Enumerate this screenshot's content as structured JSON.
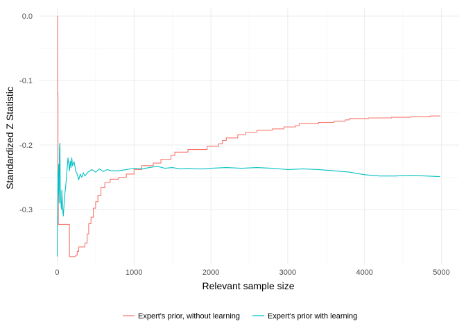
{
  "chart_data": {
    "type": "line",
    "title": "",
    "xlabel": "Relevant sample size",
    "ylabel": "Standardized Z Statistic",
    "xlim": [
      -230,
      5230
    ],
    "ylim": [
      -0.385,
      0.012
    ],
    "x_ticks": [
      0,
      1000,
      2000,
      3000,
      4000,
      5000
    ],
    "x_tick_labels": [
      "0",
      "1000",
      "2000",
      "3000",
      "4000",
      "5000"
    ],
    "y_ticks": [
      0.0,
      -0.1,
      -0.2,
      -0.3
    ],
    "y_tick_labels": [
      "0.0",
      "-0.1",
      "-0.2",
      "-0.3"
    ],
    "grid": true,
    "legend_position": "bottom",
    "series": [
      {
        "name": "Expert's prior, without learning",
        "color": "#F8766D",
        "step": true,
        "points": [
          [
            1,
            0.0
          ],
          [
            5,
            -0.12
          ],
          [
            10,
            -0.25
          ],
          [
            15,
            -0.323
          ],
          [
            150,
            -0.323
          ],
          [
            160,
            -0.373
          ],
          [
            240,
            -0.371
          ],
          [
            260,
            -0.365
          ],
          [
            280,
            -0.358
          ],
          [
            360,
            -0.352
          ],
          [
            390,
            -0.338
          ],
          [
            410,
            -0.322
          ],
          [
            440,
            -0.312
          ],
          [
            470,
            -0.298
          ],
          [
            500,
            -0.288
          ],
          [
            530,
            -0.278
          ],
          [
            570,
            -0.266
          ],
          [
            620,
            -0.258
          ],
          [
            690,
            -0.253
          ],
          [
            800,
            -0.25
          ],
          [
            900,
            -0.245
          ],
          [
            1000,
            -0.238
          ],
          [
            1100,
            -0.232
          ],
          [
            1250,
            -0.228
          ],
          [
            1350,
            -0.222
          ],
          [
            1480,
            -0.216
          ],
          [
            1530,
            -0.211
          ],
          [
            1700,
            -0.207
          ],
          [
            1950,
            -0.202
          ],
          [
            2100,
            -0.198
          ],
          [
            2150,
            -0.193
          ],
          [
            2200,
            -0.189
          ],
          [
            2350,
            -0.184
          ],
          [
            2450,
            -0.18
          ],
          [
            2600,
            -0.177
          ],
          [
            2800,
            -0.175
          ],
          [
            2950,
            -0.172
          ],
          [
            3100,
            -0.17
          ],
          [
            3150,
            -0.167
          ],
          [
            3400,
            -0.165
          ],
          [
            3600,
            -0.163
          ],
          [
            3750,
            -0.161
          ],
          [
            3800,
            -0.159
          ],
          [
            4050,
            -0.158
          ],
          [
            4350,
            -0.157
          ],
          [
            4600,
            -0.156
          ],
          [
            4850,
            -0.155
          ],
          [
            4980,
            -0.154
          ]
        ]
      },
      {
        "name": "Expert's prior with learning",
        "color": "#00BFC4",
        "step": false,
        "points": [
          [
            2,
            -0.373
          ],
          [
            5,
            -0.33
          ],
          [
            8,
            -0.29
          ],
          [
            12,
            -0.24
          ],
          [
            15,
            -0.275
          ],
          [
            20,
            -0.23
          ],
          [
            25,
            -0.29
          ],
          [
            30,
            -0.205
          ],
          [
            35,
            -0.197
          ],
          [
            40,
            -0.26
          ],
          [
            45,
            -0.285
          ],
          [
            55,
            -0.3
          ],
          [
            60,
            -0.27
          ],
          [
            70,
            -0.295
          ],
          [
            80,
            -0.31
          ],
          [
            90,
            -0.29
          ],
          [
            100,
            -0.275
          ],
          [
            110,
            -0.265
          ],
          [
            120,
            -0.25
          ],
          [
            130,
            -0.235
          ],
          [
            140,
            -0.22
          ],
          [
            150,
            -0.23
          ],
          [
            160,
            -0.24
          ],
          [
            170,
            -0.225
          ],
          [
            180,
            -0.235
          ],
          [
            190,
            -0.22
          ],
          [
            200,
            -0.232
          ],
          [
            220,
            -0.226
          ],
          [
            240,
            -0.24
          ],
          [
            260,
            -0.245
          ],
          [
            280,
            -0.254
          ],
          [
            300,
            -0.245
          ],
          [
            320,
            -0.25
          ],
          [
            340,
            -0.243
          ],
          [
            360,
            -0.248
          ],
          [
            400,
            -0.242
          ],
          [
            450,
            -0.238
          ],
          [
            500,
            -0.242
          ],
          [
            550,
            -0.237
          ],
          [
            600,
            -0.241
          ],
          [
            650,
            -0.238
          ],
          [
            700,
            -0.24
          ],
          [
            800,
            -0.24
          ],
          [
            900,
            -0.238
          ],
          [
            1000,
            -0.236
          ],
          [
            1100,
            -0.237
          ],
          [
            1200,
            -0.235
          ],
          [
            1300,
            -0.233
          ],
          [
            1400,
            -0.236
          ],
          [
            1500,
            -0.235
          ],
          [
            1600,
            -0.237
          ],
          [
            1700,
            -0.236
          ],
          [
            1800,
            -0.237
          ],
          [
            1900,
            -0.237
          ],
          [
            2000,
            -0.236
          ],
          [
            2200,
            -0.235
          ],
          [
            2400,
            -0.236
          ],
          [
            2600,
            -0.235
          ],
          [
            2800,
            -0.236
          ],
          [
            3000,
            -0.238
          ],
          [
            3200,
            -0.237
          ],
          [
            3400,
            -0.238
          ],
          [
            3600,
            -0.24
          ],
          [
            3800,
            -0.242
          ],
          [
            3900,
            -0.244
          ],
          [
            4000,
            -0.246
          ],
          [
            4200,
            -0.248
          ],
          [
            4400,
            -0.248
          ],
          [
            4600,
            -0.247
          ],
          [
            4800,
            -0.248
          ],
          [
            4980,
            -0.249
          ]
        ]
      }
    ]
  }
}
